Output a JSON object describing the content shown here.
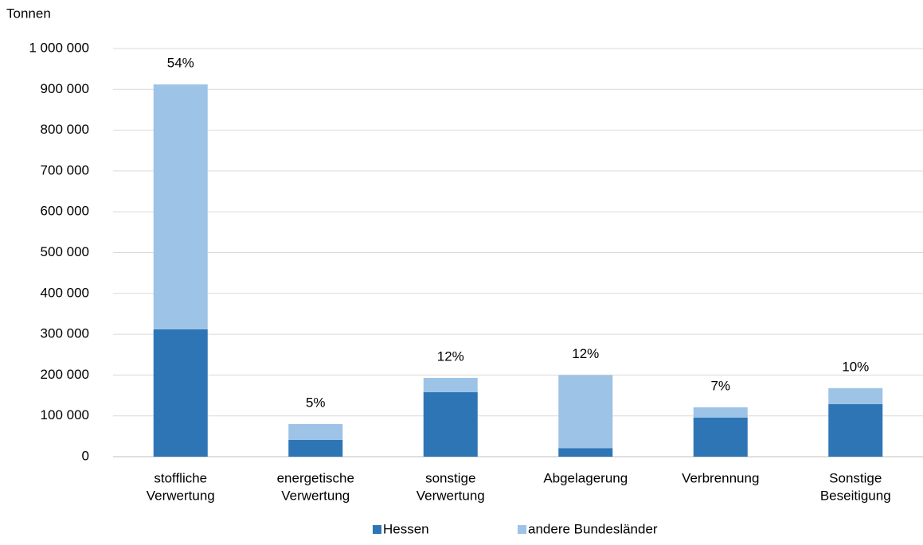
{
  "chart_data": {
    "type": "stacked_bar",
    "y_label": "Tonnen",
    "categories": [
      [
        "stoffliche",
        "Verwertung"
      ],
      [
        "energetische",
        "Verwertung"
      ],
      [
        "sonstige",
        "Verwertung"
      ],
      [
        "Abgelagerung"
      ],
      [
        "Verbrennung"
      ],
      [
        "Sonstige",
        "Beseitigung"
      ]
    ],
    "series": [
      {
        "name": "Hessen",
        "color": "#2e75b6",
        "values": [
          312000,
          41000,
          158000,
          21000,
          96000,
          129000
        ]
      },
      {
        "name": "andere Bundesländer",
        "color": "#9dc3e6",
        "values": [
          600000,
          39000,
          35000,
          179000,
          25000,
          39000
        ]
      }
    ],
    "annotations": [
      "54%",
      "5%",
      "12%",
      "12%",
      "7%",
      "10%"
    ],
    "ylim": [
      0,
      1000000
    ],
    "yticks": [
      0,
      {
        "value": 100000,
        "label": "100 000"
      },
      {
        "value": 200000,
        "label": "200 000"
      },
      {
        "value": 300000,
        "label": "300 000"
      },
      {
        "value": 400000,
        "label": "400 000"
      },
      {
        "value": 500000,
        "label": "500 000"
      },
      {
        "value": 600000,
        "label": "600 000"
      },
      {
        "value": 700000,
        "label": "700 000"
      },
      {
        "value": 800000,
        "label": "800 000"
      },
      {
        "value": 900000,
        "label": "900 000"
      },
      {
        "value": 1000000,
        "label": "1 000 000"
      }
    ],
    "grid": true,
    "legend": "bottom"
  }
}
